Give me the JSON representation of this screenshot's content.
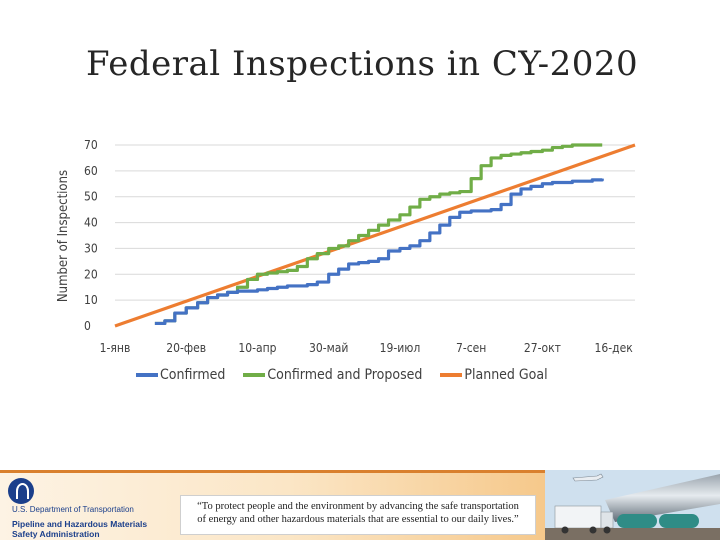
{
  "chart_data": {
    "type": "line",
    "title": "Federal Inspections in CY-2020",
    "ylabel": "Number of Inspections",
    "xlabel": "",
    "ylim": [
      0,
      70
    ],
    "yticks": [
      "0",
      "10",
      "20",
      "30",
      "40",
      "50",
      "60",
      "70"
    ],
    "xlim": [
      "2020-01-01",
      "2020-12-31"
    ],
    "xticks": [
      "1-янв",
      "20-фев",
      "10-апр",
      "30-май",
      "19-июл",
      "7-сен",
      "27-окт",
      "16-дек"
    ],
    "xtick_dates": [
      "2020-01-01",
      "2020-02-20",
      "2020-04-10",
      "2020-05-30",
      "2020-07-19",
      "2020-09-07",
      "2020-10-27",
      "2020-12-16"
    ],
    "grid": "horizontal",
    "legend": "bottom",
    "series": [
      {
        "name": "Confirmed",
        "color": "#4472c4",
        "x": [
          "2020-01-29",
          "2020-02-05",
          "2020-02-12",
          "2020-02-20",
          "2020-02-28",
          "2020-03-06",
          "2020-03-13",
          "2020-03-20",
          "2020-03-27",
          "2020-04-03",
          "2020-04-10",
          "2020-04-17",
          "2020-04-24",
          "2020-05-01",
          "2020-05-08",
          "2020-05-15",
          "2020-05-22",
          "2020-05-30",
          "2020-06-06",
          "2020-06-13",
          "2020-06-20",
          "2020-06-27",
          "2020-07-04",
          "2020-07-11",
          "2020-07-19",
          "2020-07-26",
          "2020-08-02",
          "2020-08-09",
          "2020-08-16",
          "2020-08-23",
          "2020-08-30",
          "2020-09-07",
          "2020-09-14",
          "2020-09-21",
          "2020-09-28",
          "2020-10-05",
          "2020-10-12",
          "2020-10-19",
          "2020-10-27",
          "2020-11-03",
          "2020-11-10",
          "2020-11-17",
          "2020-11-24",
          "2020-12-01",
          "2020-12-08"
        ],
        "values": [
          1,
          2,
          5,
          7,
          9,
          11,
          12,
          13,
          13.5,
          13.5,
          14,
          14.5,
          15,
          15.5,
          15.5,
          16,
          17,
          20,
          22,
          24,
          24.5,
          25,
          26,
          29,
          30,
          31,
          33,
          36,
          39,
          42,
          44,
          44.5,
          44.5,
          45,
          47,
          51,
          53,
          54,
          55,
          55.5,
          55.5,
          56,
          56,
          56.5,
          57
        ]
      },
      {
        "name": "Confirmed and Proposed",
        "color": "#70ad47",
        "x": [
          "2020-01-29",
          "2020-02-05",
          "2020-02-12",
          "2020-02-20",
          "2020-02-28",
          "2020-03-06",
          "2020-03-13",
          "2020-03-20",
          "2020-03-27",
          "2020-04-03",
          "2020-04-10",
          "2020-04-17",
          "2020-04-24",
          "2020-05-01",
          "2020-05-08",
          "2020-05-15",
          "2020-05-22",
          "2020-05-30",
          "2020-06-06",
          "2020-06-13",
          "2020-06-20",
          "2020-06-27",
          "2020-07-04",
          "2020-07-11",
          "2020-07-19",
          "2020-07-26",
          "2020-08-02",
          "2020-08-09",
          "2020-08-16",
          "2020-08-23",
          "2020-08-30",
          "2020-09-07",
          "2020-09-14",
          "2020-09-21",
          "2020-09-28",
          "2020-10-05",
          "2020-10-12",
          "2020-10-19",
          "2020-10-27",
          "2020-11-03",
          "2020-11-10",
          "2020-11-17",
          "2020-11-24",
          "2020-12-01",
          "2020-12-08"
        ],
        "values": [
          1,
          2,
          5,
          7,
          9,
          11,
          12,
          13,
          15,
          18,
          20,
          20.5,
          21,
          21.5,
          23,
          26,
          28,
          30,
          31,
          33,
          35,
          37,
          39,
          41,
          43,
          46,
          49,
          50,
          51,
          51.5,
          52,
          57,
          62,
          65,
          66,
          66.5,
          67,
          67.5,
          68,
          69,
          69.5,
          70,
          70,
          70,
          70
        ]
      },
      {
        "name": "Planned Goal",
        "color": "#ed7d31",
        "x": [
          "2020-01-01",
          "2020-12-31"
        ],
        "values": [
          0,
          70
        ]
      }
    ]
  },
  "footer": {
    "agency_line1": "U.S. Department of Transportation",
    "agency_line2": "Pipeline and Hazardous Materials",
    "agency_line3": "Safety Administration",
    "quote_line1": "“To protect people and the environment by advancing the safe transportation",
    "quote_line2": "of energy and other hazardous materials that are essential to our daily lives.”"
  }
}
